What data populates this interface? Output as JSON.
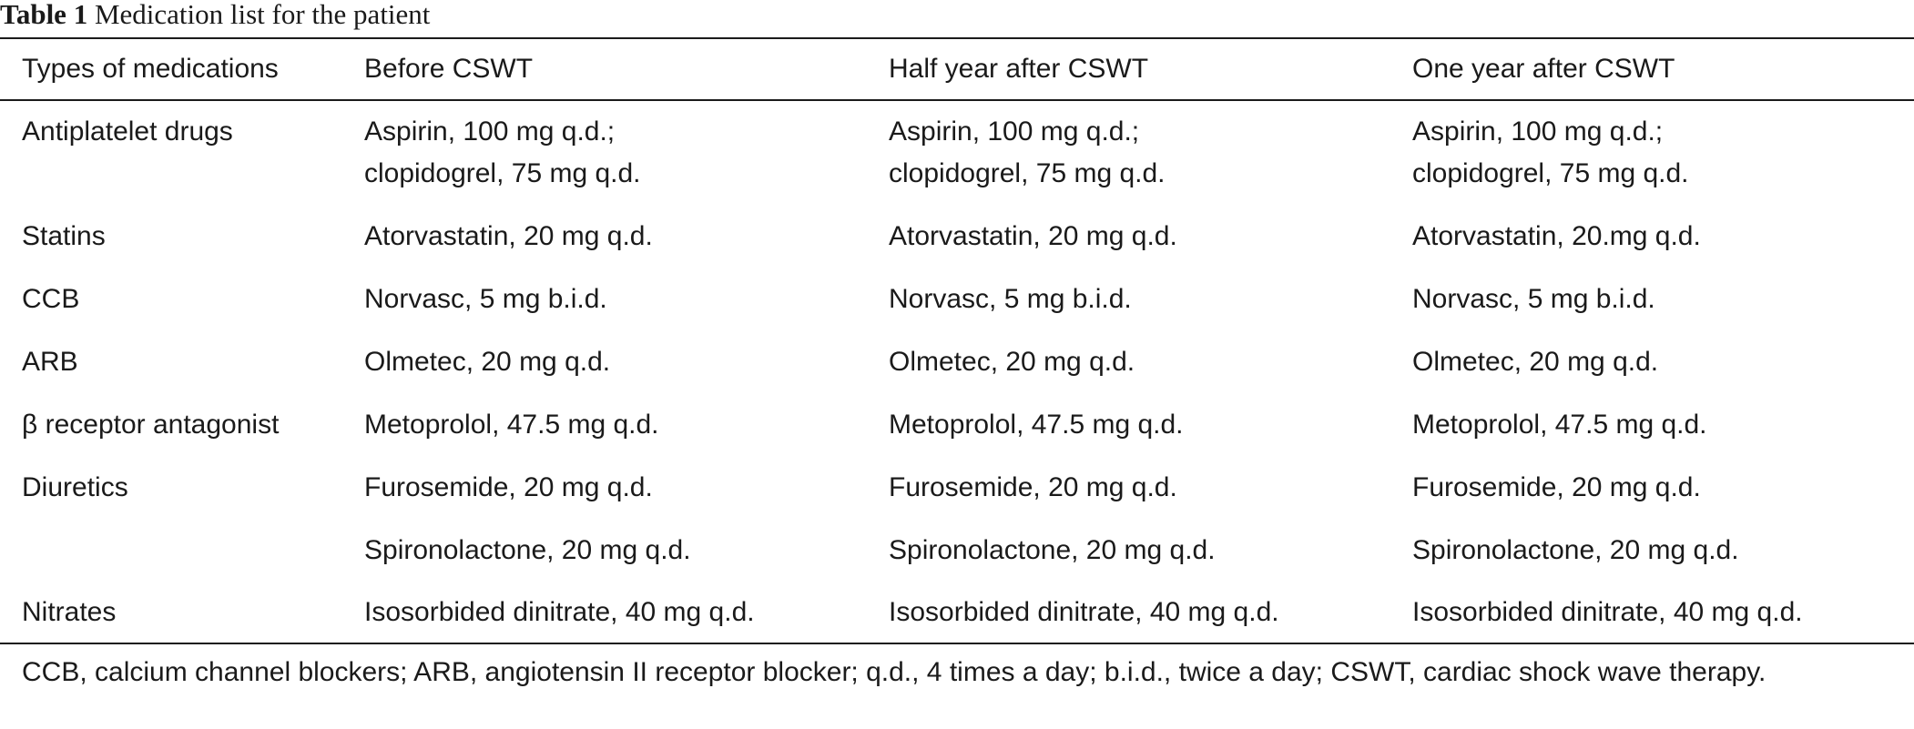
{
  "table": {
    "caption_label": "Table 1",
    "caption_text": "Medication list for the patient",
    "headers": [
      "Types of medications",
      "Before CSWT",
      "Half year after CSWT",
      "One year after CSWT"
    ],
    "rows": [
      [
        "Antiplatelet drugs",
        "Aspirin, 100 mg q.d.;",
        "Aspirin, 100 mg q.d.;",
        "Aspirin, 100 mg q.d.;"
      ],
      [
        "",
        "clopidogrel, 75 mg q.d.",
        "clopidogrel, 75 mg q.d.",
        "clopidogrel, 75 mg q.d."
      ],
      [
        "Statins",
        "Atorvastatin, 20 mg q.d.",
        "Atorvastatin, 20 mg q.d.",
        "Atorvastatin, 20.mg q.d."
      ],
      [
        "CCB",
        "Norvasc, 5 mg b.i.d.",
        "Norvasc, 5 mg b.i.d.",
        "Norvasc, 5 mg b.i.d."
      ],
      [
        "ARB",
        "Olmetec, 20 mg q.d.",
        "Olmetec, 20 mg q.d.",
        "Olmetec, 20 mg q.d."
      ],
      [
        "β receptor antagonist",
        "Metoprolol, 47.5 mg q.d.",
        "Metoprolol, 47.5 mg q.d.",
        "Metoprolol, 47.5 mg q.d."
      ],
      [
        "Diuretics",
        "Furosemide, 20 mg q.d.",
        "Furosemide, 20 mg q.d.",
        "Furosemide, 20 mg q.d."
      ],
      [
        "",
        "Spironolactone, 20 mg q.d.",
        "Spironolactone, 20 mg q.d.",
        "Spironolactone, 20 mg q.d."
      ],
      [
        "Nitrates",
        "Isosorbided dinitrate, 40 mg q.d.",
        "Isosorbided dinitrate, 40 mg q.d.",
        "Isosorbided dinitrate, 40 mg q.d."
      ]
    ],
    "footnote": "CCB, calcium channel blockers; ARB, angiotensin II receptor blocker; q.d., 4 times a day; b.i.d., twice a day; CSWT, cardiac shock wave therapy."
  }
}
